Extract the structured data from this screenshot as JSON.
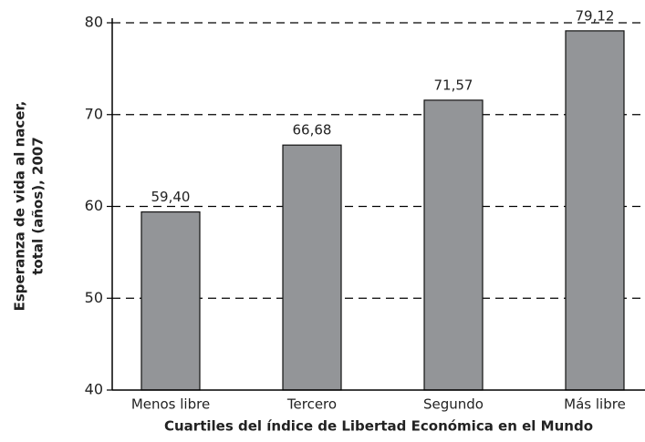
{
  "chart_data": {
    "type": "bar",
    "xlabel": "Cuartiles del índice de Libertad Económica en el Mundo",
    "ylabel": [
      "Esperanza de vida al nacer,",
      "total (años), 2007"
    ],
    "categories": [
      "Menos libre",
      "Tercero",
      "Segundo",
      "Más libre"
    ],
    "values": [
      59.4,
      66.68,
      71.57,
      79.12
    ],
    "value_labels": [
      "59,40",
      "66,68",
      "71,57",
      "79,12"
    ],
    "color": "#939598",
    "ylim": [
      40,
      80
    ],
    "yticks": [
      40,
      50,
      60,
      70,
      80
    ],
    "grid": true
  }
}
